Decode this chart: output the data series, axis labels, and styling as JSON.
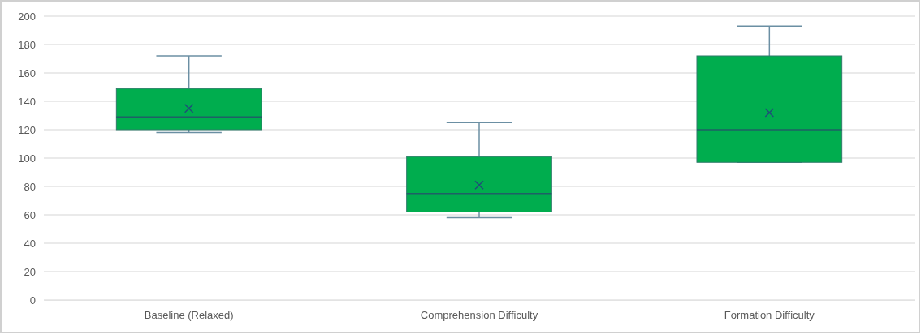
{
  "chart_data": {
    "type": "box",
    "categories": [
      "Baseline (Relaxed)",
      "Comprehension Difficulty",
      "Formation Difficulty"
    ],
    "boxes": [
      {
        "low": 118,
        "q1": 120,
        "median": 129,
        "q3": 149,
        "high": 172,
        "mean": 135
      },
      {
        "low": 58,
        "q1": 62,
        "median": 75,
        "q3": 101,
        "high": 125,
        "mean": 81
      },
      {
        "low": 97,
        "q1": 97,
        "median": 120,
        "q3": 172,
        "high": 193,
        "mean": 132
      }
    ],
    "color": "#00ad4e",
    "ylim": [
      0,
      200
    ],
    "yticks": [
      0,
      20,
      40,
      60,
      80,
      100,
      120,
      140,
      160,
      180,
      200
    ],
    "grid": "y"
  }
}
